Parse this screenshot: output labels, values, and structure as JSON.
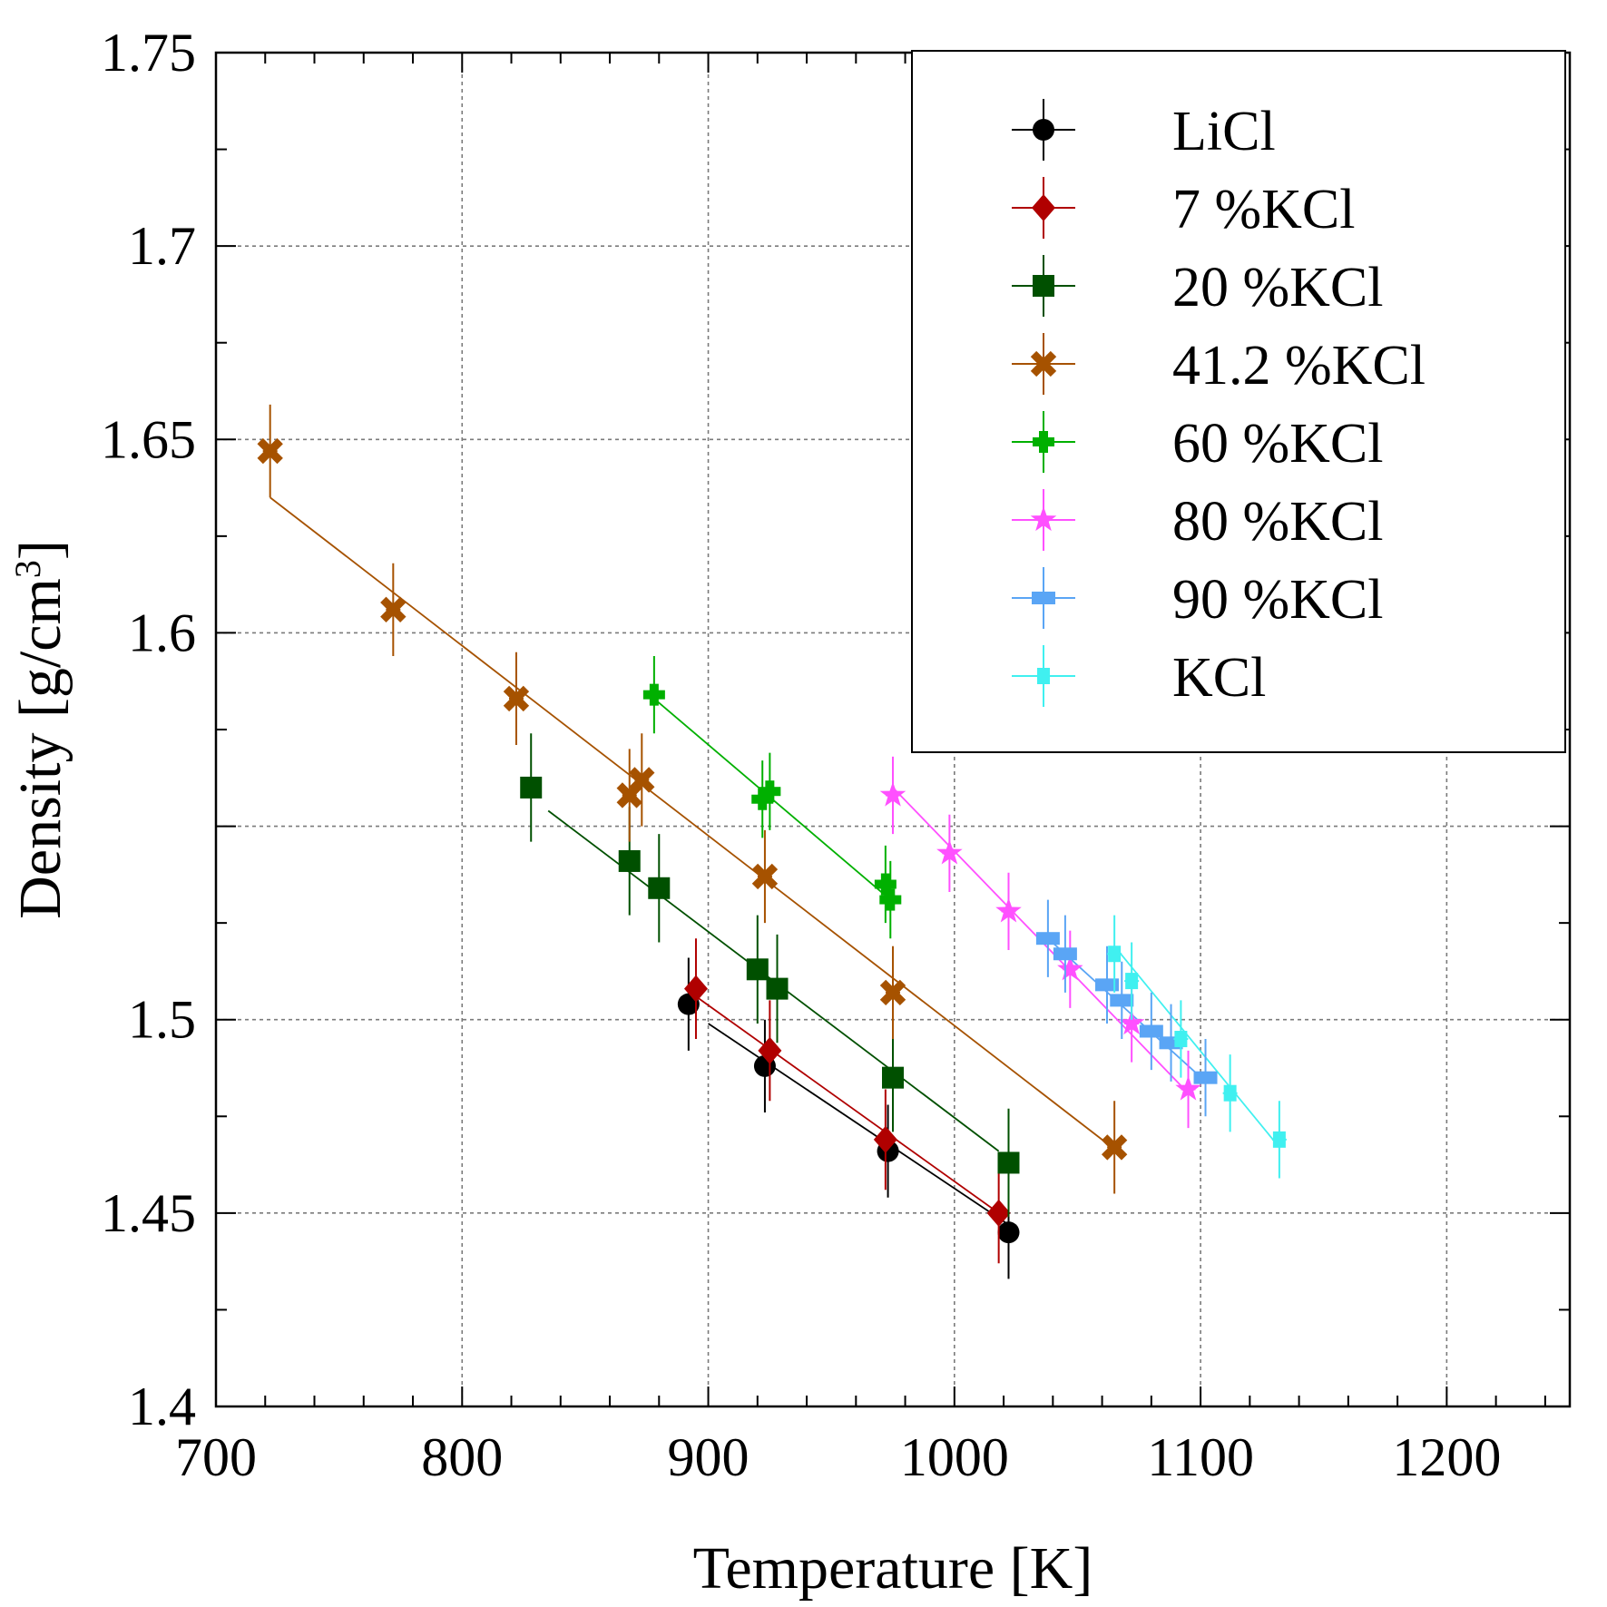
{
  "chart_data": {
    "type": "scatter",
    "xlabel": "Temperature [K]",
    "ylabel": "Density [g/cm",
    "ylabel_sup": "3",
    "ylabel_end": "]",
    "xlim": [
      700,
      1250
    ],
    "ylim": [
      1.4,
      1.75
    ],
    "x_ticks": [
      700,
      800,
      900,
      1000,
      1100,
      1200
    ],
    "x_tick_labels": [
      "700",
      "800",
      "900",
      "1000",
      "1100",
      "1200"
    ],
    "y_ticks": [
      1.4,
      1.45,
      1.5,
      1.6,
      1.65,
      1.7,
      1.75
    ],
    "y_tick_labels": [
      "1.4",
      "1.45",
      "1.5",
      "1.6",
      "1.65",
      "1.7",
      "1.75"
    ],
    "x_grid": [
      800,
      900,
      1000,
      1100,
      1200
    ],
    "y_grid": [
      1.45,
      1.5,
      1.55,
      1.6,
      1.65,
      1.7
    ],
    "x_minor_step": 20,
    "y_minor_step": 0.025,
    "grid": true,
    "legend_position": "top-right",
    "series": [
      {
        "name": "LiCl",
        "color": "#000000",
        "marker": "circle",
        "points": [
          [
            892,
            1.504
          ],
          [
            923,
            1.488
          ],
          [
            973,
            1.466
          ],
          [
            1022,
            1.445
          ]
        ],
        "y_err": 0.012,
        "fit": [
          [
            900,
            1.499
          ],
          [
            1022,
            1.447
          ]
        ]
      },
      {
        "name": "7 %KCl",
        "color": "#b00000",
        "marker": "diamond",
        "points": [
          [
            895,
            1.508
          ],
          [
            925,
            1.492
          ],
          [
            972,
            1.469
          ],
          [
            1018,
            1.45
          ]
        ],
        "y_err": 0.013,
        "fit": [
          [
            895,
            1.506
          ],
          [
            1018,
            1.45
          ]
        ]
      },
      {
        "name": "20 %KCl",
        "color": "#005000",
        "marker": "square",
        "points": [
          [
            828,
            1.56
          ],
          [
            868,
            1.541
          ],
          [
            880,
            1.534
          ],
          [
            920,
            1.513
          ],
          [
            928,
            1.508
          ],
          [
            975,
            1.485
          ],
          [
            1022,
            1.463
          ]
        ],
        "y_err": 0.014,
        "fit": [
          [
            835,
            1.554
          ],
          [
            1018,
            1.466
          ]
        ]
      },
      {
        "name": "41.2 %KCl",
        "color": "#a65200",
        "marker": "x",
        "points": [
          [
            722,
            1.647
          ],
          [
            772,
            1.606
          ],
          [
            822,
            1.583
          ],
          [
            868,
            1.558
          ],
          [
            873,
            1.562
          ],
          [
            923,
            1.537
          ],
          [
            975,
            1.507
          ],
          [
            1065,
            1.467
          ]
        ],
        "y_err": 0.012,
        "fit": [
          [
            722,
            1.635
          ],
          [
            1062,
            1.468
          ]
        ]
      },
      {
        "name": "60 %KCl",
        "color": "#00b000",
        "marker": "plus",
        "points": [
          [
            878,
            1.584
          ],
          [
            922,
            1.557
          ],
          [
            925,
            1.559
          ],
          [
            972,
            1.535
          ],
          [
            974,
            1.531
          ]
        ],
        "y_err": 0.01,
        "fit": [
          [
            878,
            1.583
          ],
          [
            974,
            1.531
          ]
        ]
      },
      {
        "name": "80 %KCl",
        "color": "#ff50ff",
        "marker": "star",
        "points": [
          [
            975,
            1.558
          ],
          [
            998,
            1.543
          ],
          [
            1022,
            1.528
          ],
          [
            1047,
            1.513
          ],
          [
            1072,
            1.499
          ],
          [
            1095,
            1.482
          ]
        ],
        "y_err": 0.01,
        "fit": [
          [
            975,
            1.56
          ],
          [
            1095,
            1.481
          ]
        ]
      },
      {
        "name": "90 %KCl",
        "color": "#5aa5f5",
        "marker": "rect",
        "points": [
          [
            1038,
            1.521
          ],
          [
            1045,
            1.517
          ],
          [
            1062,
            1.509
          ],
          [
            1068,
            1.505
          ],
          [
            1080,
            1.497
          ],
          [
            1088,
            1.494
          ],
          [
            1102,
            1.485
          ]
        ],
        "y_err": 0.01,
        "fit": [
          [
            1038,
            1.521
          ],
          [
            1102,
            1.484
          ]
        ]
      },
      {
        "name": "KCl",
        "color": "#40f0f0",
        "marker": "smallsquare",
        "points": [
          [
            1065,
            1.517
          ],
          [
            1072,
            1.51
          ],
          [
            1092,
            1.495
          ],
          [
            1112,
            1.481
          ],
          [
            1132,
            1.469
          ]
        ],
        "y_err": 0.01,
        "fit": [
          [
            1065,
            1.519
          ],
          [
            1132,
            1.467
          ]
        ]
      }
    ]
  }
}
